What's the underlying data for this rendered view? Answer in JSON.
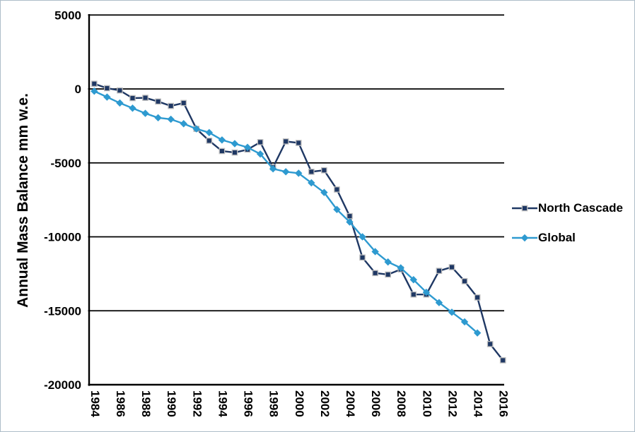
{
  "window": {
    "background": "#ffffff",
    "border_color": "#aebdc9"
  },
  "chart_data": {
    "type": "line",
    "title": "",
    "xlabel": "",
    "ylabel": "Annual Mass Balance mm w.e.",
    "ylim": [
      -20000,
      5000
    ],
    "yticks": [
      5000,
      0,
      -5000,
      -10000,
      -15000,
      -20000
    ],
    "x_tick_labels": [
      "1984",
      "1986",
      "1988",
      "1990",
      "1992",
      "1994",
      "1996",
      "1998",
      "2000",
      "2002",
      "2004",
      "2006",
      "2008",
      "2010",
      "2012",
      "2014",
      "2016"
    ],
    "grid": "horizontal black gridlines",
    "legend_position": "right-middle",
    "axis_color": "#000000",
    "x": [
      1984,
      1985,
      1986,
      1987,
      1988,
      1989,
      1990,
      1991,
      1992,
      1993,
      1994,
      1995,
      1996,
      1997,
      1998,
      1999,
      2000,
      2001,
      2002,
      2003,
      2004,
      2005,
      2006,
      2007,
      2008,
      2009,
      2010,
      2011,
      2012,
      2013,
      2014,
      2015,
      2016
    ],
    "series": [
      {
        "name": "North Cascade",
        "color": "#1F3864",
        "marker": "square",
        "marker_edge": "#BFBFBF",
        "values": [
          350,
          50,
          -100,
          -620,
          -600,
          -850,
          -1150,
          -950,
          -2700,
          -3500,
          -4200,
          -4300,
          -4100,
          -3600,
          -5300,
          -3550,
          -3650,
          -5600,
          -5500,
          -6800,
          -8600,
          -11400,
          -12450,
          -12550,
          -12200,
          -13900,
          -13900,
          -12300,
          -12050,
          -13000,
          -14100,
          -17250,
          -18350
        ]
      },
      {
        "name": "Global",
        "color": "#2E9AD0",
        "marker": "diamond",
        "marker_edge": "#2E9AD0",
        "values": [
          -150,
          -550,
          -950,
          -1300,
          -1650,
          -1950,
          -2050,
          -2350,
          -2700,
          -2950,
          -3450,
          -3700,
          -3950,
          -4400,
          -5400,
          -5600,
          -5700,
          -6350,
          -7000,
          -8150,
          -9000,
          -10000,
          -11000,
          -11700,
          -12100,
          -12900,
          -13750,
          -14450,
          -15100,
          -15750,
          -16500,
          null,
          null
        ]
      }
    ]
  }
}
